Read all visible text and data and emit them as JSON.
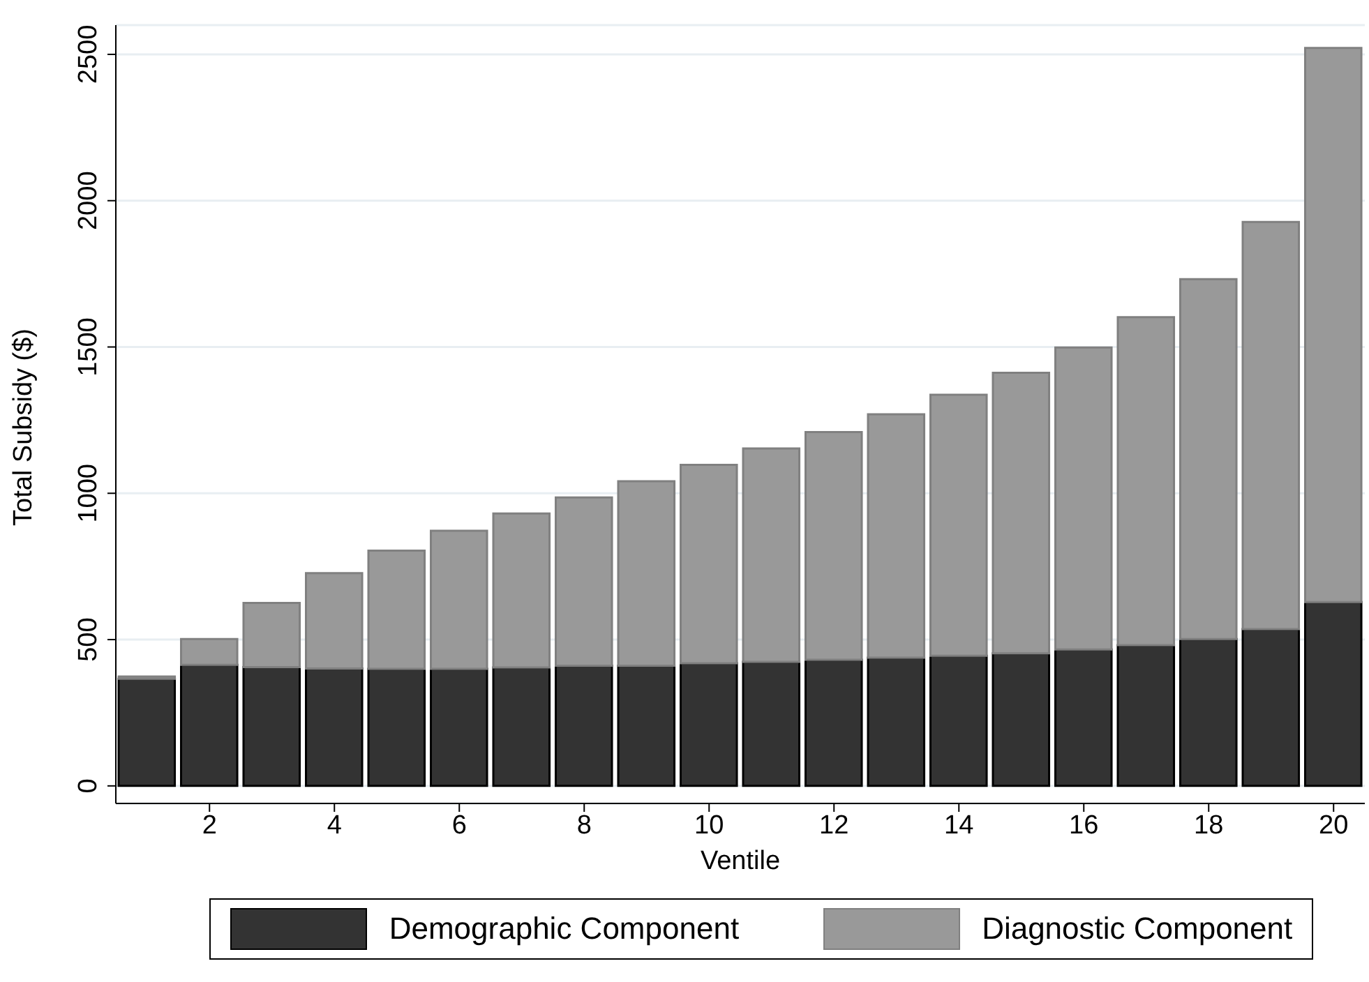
{
  "chart_data": {
    "type": "bar",
    "stacked": true,
    "xlabel": "Ventile",
    "ylabel": "Total Subsidy ($)",
    "x": [
      1,
      2,
      3,
      4,
      5,
      6,
      7,
      8,
      9,
      10,
      11,
      12,
      13,
      14,
      15,
      16,
      17,
      18,
      19,
      20
    ],
    "series": [
      {
        "name": "Demographic Component",
        "color": "#333333",
        "values": [
          366,
          414,
          406,
          401,
          400,
          400,
          405,
          411,
          411,
          419,
          424,
          431,
          438,
          445,
          453,
          466,
          481,
          502,
          536,
          628
        ]
      },
      {
        "name": "Diagnostic Component",
        "color": "#999999",
        "values": [
          8,
          88,
          219,
          326,
          404,
          472,
          526,
          575,
          630,
          678,
          729,
          778,
          832,
          892,
          959,
          1032,
          1121,
          1230,
          1391,
          1894
        ]
      }
    ],
    "xlim": [
      0.5,
      20.5
    ],
    "xticks": [
      2,
      4,
      6,
      8,
      10,
      12,
      14,
      16,
      18,
      20
    ],
    "ylim": [
      -60,
      2600
    ],
    "yticks": [
      0,
      500,
      1000,
      1500,
      2000,
      2500
    ],
    "grid": "y",
    "legend": "bottom"
  }
}
